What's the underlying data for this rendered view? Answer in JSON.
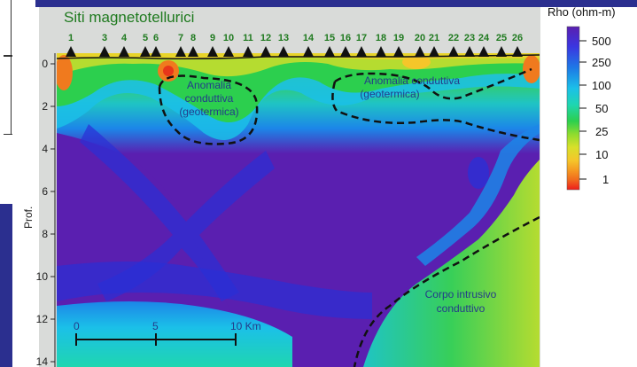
{
  "figure": {
    "title": "Siti magnetotellurici",
    "y_axis_label": "Prof.",
    "depth_ticks": [
      "0",
      "2",
      "4",
      "6",
      "8",
      "10",
      "12",
      "14"
    ],
    "site_labels": [
      "1",
      "3",
      "4",
      "5",
      "6",
      "7",
      "8",
      "9",
      "10",
      "11",
      "12",
      "13",
      "14",
      "15",
      "16",
      "17",
      "18",
      "19",
      "20",
      "21",
      "22",
      "23",
      "24",
      "25",
      "26"
    ],
    "annotations": {
      "anomaly_left": [
        "Anomalia",
        "conduttiva",
        "(geotermica)"
      ],
      "anomaly_right": [
        "Anomalia conduttiva",
        "(geotermica)"
      ],
      "intrusive_body": [
        "Corpo intrusivo",
        "conduttivo"
      ]
    },
    "scale_bar": {
      "labels": [
        "0",
        "5",
        "10 Km"
      ]
    },
    "legend": {
      "title": "Rho (ohm-m)",
      "ticks": [
        "500",
        "250",
        "100",
        "50",
        "25",
        "10",
        "1"
      ],
      "colors": [
        "#5a1fb0",
        "#3b35e0",
        "#1e78e6",
        "#1bc0e8",
        "#1fd6b0",
        "#2ccf4e",
        "#8fdc2e",
        "#d8e02a",
        "#f5c62a",
        "#f59a22",
        "#f06a1e",
        "#e8361a",
        "#ee1c1c"
      ]
    }
  }
}
